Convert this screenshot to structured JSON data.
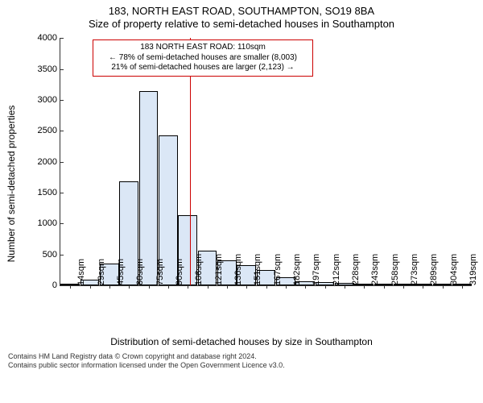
{
  "titles": {
    "line1": "183, NORTH EAST ROAD, SOUTHAMPTON, SO19 8BA",
    "line2": "Size of property relative to semi-detached houses in Southampton"
  },
  "yaxis": {
    "label": "Number of semi-detached properties",
    "min": 0,
    "max": 4000,
    "tick_step": 500,
    "ticks": [
      0,
      500,
      1000,
      1500,
      2000,
      2500,
      3000,
      3500,
      4000
    ]
  },
  "xaxis": {
    "label": "Distribution of semi-detached houses by size in Southampton",
    "tick_labels": [
      "14sqm",
      "29sqm",
      "45sqm",
      "60sqm",
      "75sqm",
      "90sqm",
      "106sqm",
      "121sqm",
      "136sqm",
      "151sqm",
      "167sqm",
      "182sqm",
      "197sqm",
      "212sqm",
      "228sqm",
      "243sqm",
      "258sqm",
      "273sqm",
      "289sqm",
      "304sqm",
      "319sqm"
    ]
  },
  "bars": {
    "color": "#dbe7f6",
    "border_color": "#000000",
    "values": [
      30,
      90,
      360,
      1680,
      3140,
      2420,
      1140,
      560,
      410,
      330,
      250,
      130,
      70,
      60,
      40,
      30,
      15,
      10,
      5,
      3,
      2
    ]
  },
  "marker": {
    "color": "#cc0000",
    "x_value_sqm": 110,
    "info_lines": [
      "183 NORTH EAST ROAD: 110sqm",
      "← 78% of semi-detached houses are smaller (8,003)",
      "21% of semi-detached houses are larger (2,123) →"
    ]
  },
  "footer": {
    "line1": "Contains HM Land Registry data © Crown copyright and database right 2024.",
    "line2": "Contains public sector information licensed under the Open Government Licence v3.0."
  },
  "style": {
    "background": "#ffffff",
    "axis_color": "#333333",
    "label_fontsize_pt": 12,
    "title_fontsize_pt": 13,
    "tick_fontsize_pt": 11,
    "info_fontsize_pt": 10,
    "footer_fontsize_pt": 9
  }
}
